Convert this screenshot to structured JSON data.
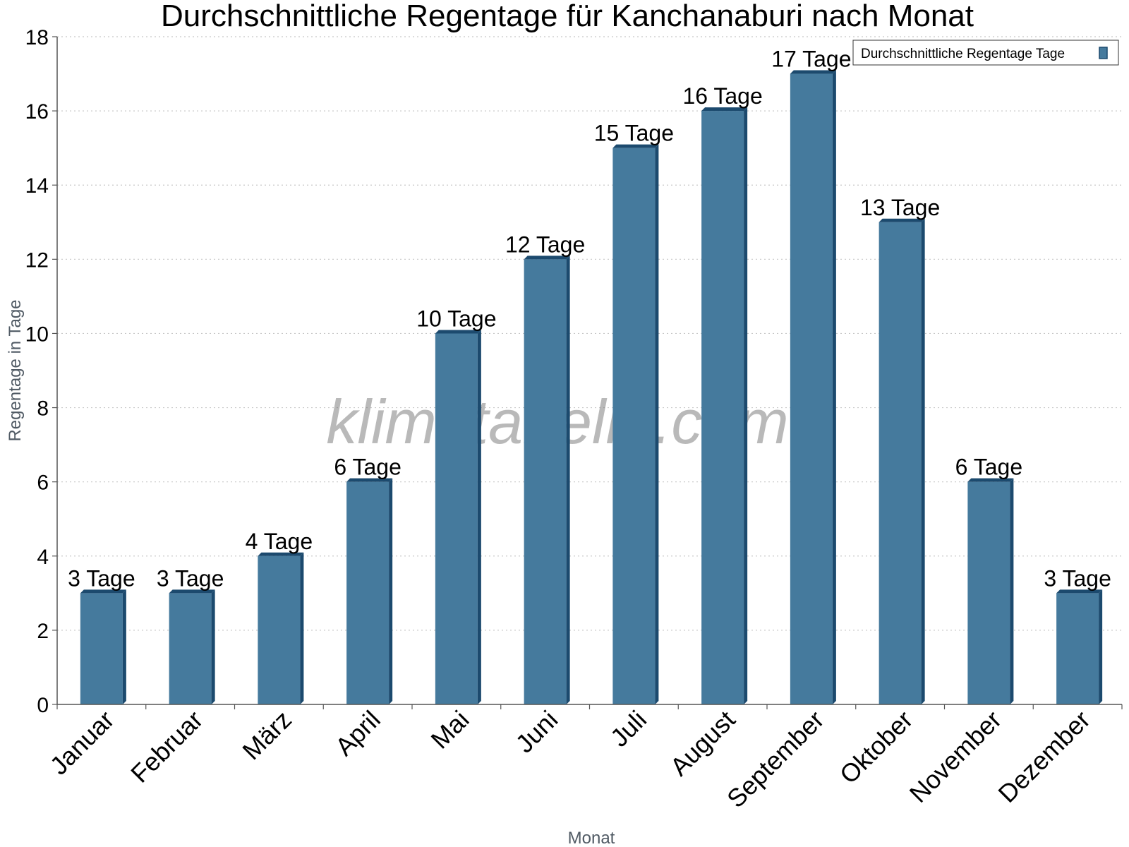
{
  "watermark": "klimatabelle.com",
  "chart_data": {
    "type": "bar",
    "title": "Durchschnittliche Regentage für Kanchanaburi nach Monat",
    "xlabel": "Monat",
    "ylabel": "Regentage in Tage",
    "categories": [
      "Januar",
      "Februar",
      "März",
      "April",
      "Mai",
      "Juni",
      "Juli",
      "August",
      "September",
      "Oktober",
      "November",
      "Dezember"
    ],
    "series": [
      {
        "name": "Durchschnittliche Regentage Tage",
        "values": [
          3,
          3,
          4,
          6,
          10,
          12,
          15,
          16,
          17,
          13,
          6,
          3
        ],
        "color": "#457a9d",
        "side_color": "#1c4a6e",
        "data_labels": [
          "3 Tage",
          "3 Tage",
          "4 Tage",
          "6 Tage",
          "10 Tage",
          "12 Tage",
          "15 Tage",
          "16 Tage",
          "17 Tage",
          "13 Tage",
          "6 Tage",
          "3 Tage"
        ]
      }
    ],
    "ylim": [
      0,
      18
    ],
    "yticks": [
      0,
      2,
      4,
      6,
      8,
      10,
      12,
      14,
      16,
      18
    ],
    "grid": true,
    "legend_position": "top-right"
  }
}
